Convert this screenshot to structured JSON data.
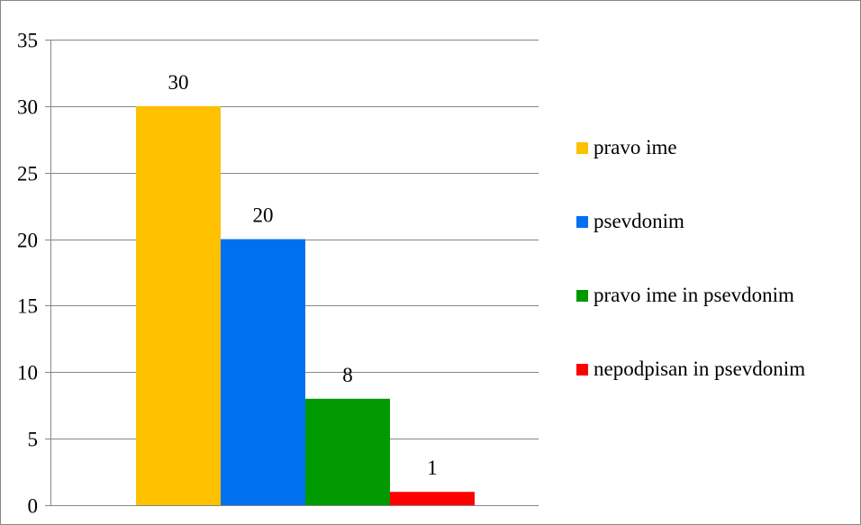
{
  "chart_data": {
    "type": "bar",
    "title": "",
    "xlabel": "",
    "ylabel": "",
    "ylim": [
      0,
      35
    ],
    "yticks": [
      0,
      5,
      10,
      15,
      20,
      25,
      30,
      35
    ],
    "grid": true,
    "legend_position": "right",
    "series": [
      {
        "name": "pravo ime",
        "value": 30,
        "color": "#FFC000"
      },
      {
        "name": "psevdonim",
        "value": 20,
        "color": "#0070F0"
      },
      {
        "name": "pravo ime in psevdonim",
        "value": 8,
        "color": "#009900"
      },
      {
        "name": "nepodpisan in psevdonim",
        "value": 1,
        "color": "#FF0000"
      }
    ]
  }
}
